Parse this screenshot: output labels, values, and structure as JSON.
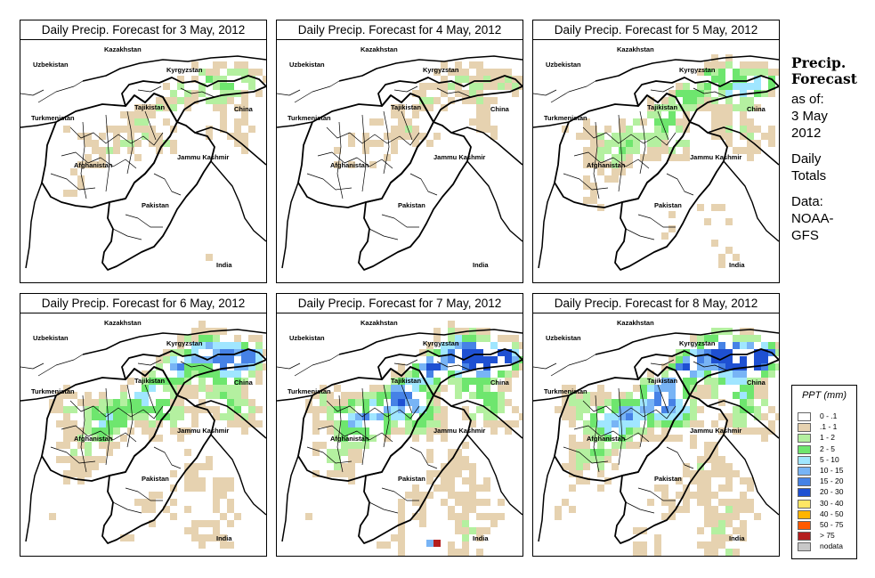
{
  "panels": [
    {
      "title": "Daily Precip. Forecast for  3 May, 2012"
    },
    {
      "title": "Daily Precip. Forecast for  4 May, 2012"
    },
    {
      "title": "Daily Precip. Forecast for  5 May, 2012"
    },
    {
      "title": "Daily Precip. Forecast for  6 May, 2012"
    },
    {
      "title": "Daily Precip. Forecast for  7 May, 2012"
    },
    {
      "title": "Daily Precip. Forecast for  8 May, 2012"
    }
  ],
  "map_labels": {
    "kazakhstan": "Kazakhstan",
    "uzbekistan": "Uzbekistan",
    "kyrgyzstan": "Kyrgyzstan",
    "tajikistan": "Tajikistan",
    "turkmenistan": "Turkmenistan",
    "china": "China",
    "jammu_kashmir": "Jammu Kashmir",
    "afghanistan": "Afghanistan",
    "pakistan": "Pakistan",
    "india": "India"
  },
  "side": {
    "title_line1": "Precip.",
    "title_line2": "Forecast",
    "asof_line1": "as of:",
    "asof_line2": "3 May",
    "asof_line3": "2012",
    "daily_line1": "Daily",
    "daily_line2": "Totals",
    "data_line1": "Data:",
    "data_line2": "NOAA-",
    "data_line3": "GFS"
  },
  "legend": {
    "title": "PPT (mm)",
    "items": [
      {
        "label": "0 - .1",
        "color": "#ffffff"
      },
      {
        "label": ".1 - 1",
        "color": "#e6d2b0"
      },
      {
        "label": "1 - 2",
        "color": "#b4f0a0"
      },
      {
        "label": "2 - 5",
        "color": "#6ee66e"
      },
      {
        "label": "5 - 10",
        "color": "#a0e6ff"
      },
      {
        "label": "10 - 15",
        "color": "#78b4f5"
      },
      {
        "label": "15 - 20",
        "color": "#4682e6"
      },
      {
        "label": "20 - 30",
        "color": "#1e50d2"
      },
      {
        "label": "30 - 40",
        "color": "#ffe664"
      },
      {
        "label": "40 - 50",
        "color": "#ffb400"
      },
      {
        "label": "50 - 75",
        "color": "#ff5a00"
      },
      {
        "label": "> 75",
        "color": "#b41e1e"
      },
      {
        "label": "nodata",
        "color": "#c8c8c8"
      }
    ]
  }
}
